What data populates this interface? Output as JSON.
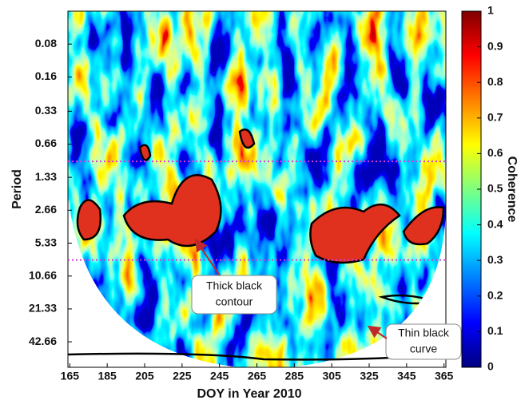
{
  "chart_data": {
    "type": "wavelet-coherence",
    "xlabel": "DOY in Year 2010",
    "ylabel": "Period",
    "xlim": [
      164,
      366
    ],
    "xticks": [
      165,
      185,
      205,
      225,
      245,
      265,
      285,
      305,
      325,
      345,
      365
    ],
    "ylim": [
      0.04,
      73
    ],
    "y_log_base": 2,
    "y_reversed": true,
    "yticks": [
      0.08,
      0.16,
      0.33,
      0.66,
      1.33,
      2.66,
      5.33,
      10.66,
      21.33,
      42.66
    ],
    "reference_lines": [
      {
        "value": 0.95,
        "color": "#d040d0"
      },
      {
        "value": 7.6,
        "color": "#d040d0"
      }
    ],
    "colorbar": {
      "label": "Coherence",
      "colormap": "jet",
      "lim": [
        0,
        1
      ],
      "ticks": [
        0,
        0.1,
        0.2,
        0.3,
        0.4,
        0.5,
        0.6,
        0.7,
        0.8,
        0.9,
        1
      ]
    },
    "annotations": [
      {
        "lines": [
          "Thick black",
          "contour"
        ],
        "arrow_color": "#c0282c"
      },
      {
        "lines": [
          "Thin black",
          "curve"
        ],
        "arrow_color": "#c0282c"
      }
    ]
  }
}
